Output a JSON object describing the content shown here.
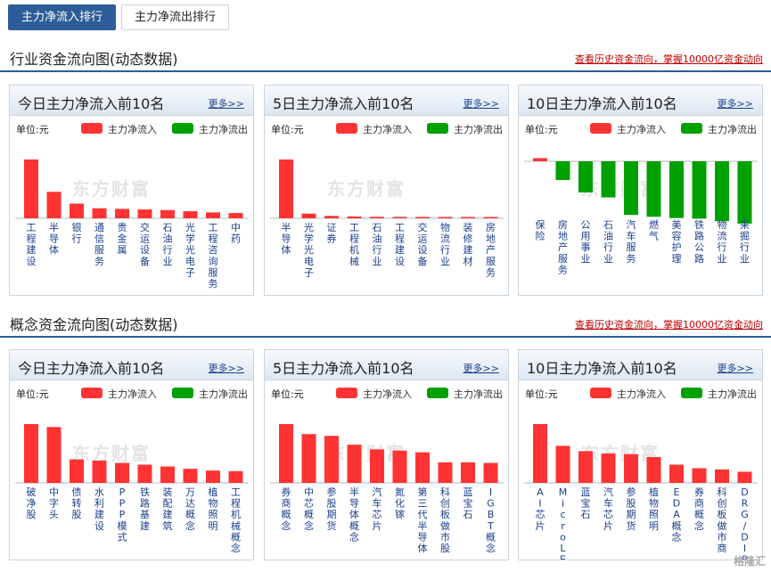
{
  "tabs": [
    {
      "label": "主力净流入排行",
      "active": true
    },
    {
      "label": "主力净流出排行",
      "active": false
    }
  ],
  "sections": [
    {
      "title": "行业资金流向图(动态数据)",
      "link": "查看历史资金流向，掌握10000亿资金动向",
      "panels": [
        {
          "title": "今日主力净流入前10名",
          "more": "更多>>",
          "unit": "单位:元",
          "legend_in": "主力净流入",
          "legend_out": "主力净流出",
          "chart_data": {
            "type": "bar",
            "categories": [
              "工程建设",
              "半导体",
              "银行",
              "通信服务",
              "贵金属",
              "交运设备",
              "石油行业",
              "光学光电子",
              "工程咨询服务",
              "中药"
            ],
            "values": [
              100,
              45,
              25,
              17,
              16,
              15,
              14,
              12,
              10,
              9
            ]
          }
        },
        {
          "title": "5日主力净流入前10名",
          "more": "更多>>",
          "unit": "单位:元",
          "legend_in": "主力净流入",
          "legend_out": "主力净流出",
          "chart_data": {
            "type": "bar",
            "categories": [
              "半导体",
              "光学光电子",
              "证券",
              "工程机械",
              "石油行业",
              "工程建设",
              "交运设备",
              "物流行业",
              "装修建材",
              "房地产服务"
            ],
            "values": [
              100,
              8,
              4,
              3,
              2.5,
              2,
              1.5,
              1.2,
              1,
              0.8
            ]
          }
        },
        {
          "title": "10日主力净流入前10名",
          "more": "更多>>",
          "unit": "单位:元",
          "legend_in": "主力净流入",
          "legend_out": "主力净流出",
          "chart_data": {
            "type": "bar",
            "categories": [
              "保险",
              "房地产服务",
              "公用事业",
              "石油行业",
              "汽车服务",
              "燃气",
              "美容护理",
              "铁路公路",
              "物流行业",
              "采掘行业"
            ],
            "values": [
              5,
              -30,
              -50,
              -58,
              -86,
              -89,
              -91,
              -92,
              -96,
              -100
            ]
          }
        }
      ]
    },
    {
      "title": "概念资金流向图(动态数据)",
      "link": "查看历史资金流向，掌握10000亿资金动向",
      "panels": [
        {
          "title": "今日主力净流入前10名",
          "more": "更多>>",
          "unit": "单位:元",
          "legend_in": "主力净流入",
          "legend_out": "主力净流出",
          "chart_data": {
            "type": "bar",
            "categories": [
              "破净股",
              "中字头",
              "债转股",
              "水利建设",
              "PPP模式",
              "铁路基建",
              "装配建筑",
              "万达概念",
              "植物照明",
              "工程机械概念"
            ],
            "values": [
              100,
              95,
              40,
              38,
              34,
              31,
              28,
              24,
              21,
              20
            ]
          }
        },
        {
          "title": "5日主力净流入前10名",
          "more": "更多>>",
          "unit": "单位:元",
          "legend_in": "主力净流入",
          "legend_out": "主力净流出",
          "chart_data": {
            "type": "bar",
            "categories": [
              "券商概念",
              "中芯概念",
              "参股期货",
              "半导体概念",
              "汽车芯片",
              "氮化镓",
              "第三代半导体",
              "科创板做市股",
              "蓝宝石",
              "IGBT概念"
            ],
            "values": [
              100,
              83,
              80,
              65,
              57,
              55,
              52,
              35,
              35,
              34
            ]
          }
        },
        {
          "title": "10日主力净流入前10名",
          "more": "更多>>",
          "unit": "单位:元",
          "legend_in": "主力净流入",
          "legend_out": "主力净流出",
          "chart_data": {
            "type": "bar",
            "categories": [
              "AI芯片",
              "MicroLED",
              "蓝宝石",
              "汽车芯片",
              "参股期货",
              "植物照明",
              "EDA概念",
              "券商概念",
              "科创板做市商",
              "DRG/DIP"
            ],
            "values": [
              100,
              63,
              54,
              50,
              49,
              44,
              31,
              25,
              23,
              19
            ]
          }
        }
      ]
    }
  ],
  "watermark": "东方财富",
  "signature": "格隆汇",
  "colors": {
    "inflow": "#ff3333",
    "outflow": "#00a000",
    "accent": "#2c5d98"
  }
}
